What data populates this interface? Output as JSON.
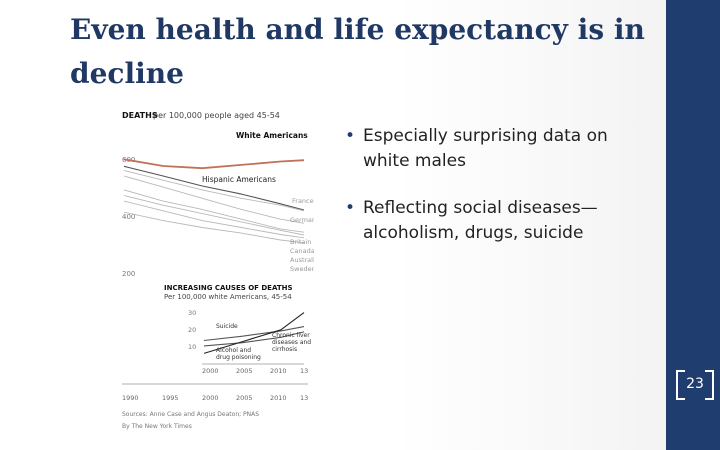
{
  "slide": {
    "title_line1": "Even health and life expectancy is in",
    "title_line2": "decline",
    "bullets": [
      "Especially surprising data on white males",
      "Reflecting social diseases—alcoholism, drugs, suicide"
    ],
    "page_number": "23"
  },
  "chart_data": [
    {
      "type": "line",
      "title_bold": "DEATHS",
      "title": "per 100,000 people aged 45-54",
      "x": [
        1990,
        1995,
        2000,
        2005,
        2010,
        2013
      ],
      "x_tick_labels": [
        "1990",
        "1995",
        "2000",
        "2005",
        "2010",
        "13"
      ],
      "y_tick_labels": [
        "200",
        "400",
        "600"
      ],
      "ylim": [
        150,
        750
      ],
      "series": [
        {
          "name": "White Americans",
          "values": [
            580,
            556,
            548,
            560,
            572,
            577
          ]
        },
        {
          "name": "Hispanic Americans",
          "values": [
            555,
            520,
            484,
            455,
            420,
            398
          ]
        },
        {
          "name": "France",
          "values": [
            540,
            505,
            470,
            440,
            415,
            395
          ]
        },
        {
          "name": "Germany",
          "values": [
            520,
            480,
            440,
            400,
            365,
            350
          ]
        },
        {
          "name": "Britain",
          "values": [
            470,
            430,
            400,
            365,
            330,
            318
          ]
        },
        {
          "name": "Canada",
          "values": [
            450,
            415,
            385,
            355,
            325,
            308
          ]
        },
        {
          "name": "Australia",
          "values": [
            430,
            395,
            360,
            335,
            310,
            298
          ]
        },
        {
          "name": "Sweden",
          "values": [
            390,
            360,
            335,
            315,
            290,
            280
          ]
        }
      ],
      "labels": {
        "white": "White Americans",
        "hispanic": "Hispanic Americans",
        "france": "France",
        "germany": "Germany",
        "britain": "Britain",
        "canada": "Canada",
        "australia": "Australia",
        "sweden": "Sweden"
      },
      "source": "Sources: Anne Case and Angus Deaton; PNAS",
      "credit": "By The New York Times",
      "colors": {
        "highlight": "#c0715a",
        "hispanic": "#555555",
        "others": "#b9b9b9"
      }
    },
    {
      "type": "line",
      "title": "INCREASING CAUSES OF DEATHS",
      "subtitle": "Per 100,000 white Americans, 45-54",
      "x": [
        2000,
        2005,
        2010,
        2013
      ],
      "x_tick_labels": [
        "2000",
        "2005",
        "2010",
        "13"
      ],
      "y_tick_labels": [
        "10",
        "20",
        "30"
      ],
      "ylim": [
        5,
        32
      ],
      "series": [
        {
          "name": "Suicide",
          "values": [
            15.0,
            17.0,
            19.5,
            21.5
          ]
        },
        {
          "name": "Chronic liver diseases and cirrhosis",
          "values": [
            12.5,
            14.0,
            16.5,
            19.0
          ]
        },
        {
          "name": "Alcohol and drug poisoning",
          "values": [
            9.0,
            14.5,
            20.0,
            28.0
          ]
        }
      ],
      "labels": {
        "suicide": "Suicide",
        "liver_1": "Chronic liver",
        "liver_2": "diseases and",
        "liver_3": "cirrhosis",
        "poison_1": "Alcohol and",
        "poison_2": "drug poisoning"
      }
    }
  ]
}
